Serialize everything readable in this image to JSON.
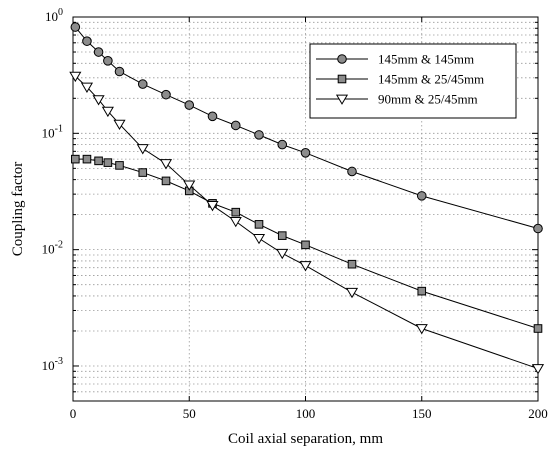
{
  "chart_data": {
    "type": "line",
    "xlabel": "Coil axial separation, mm",
    "ylabel": "Coupling factor",
    "xlim": [
      0,
      200
    ],
    "ylim": [
      0.0005,
      1
    ],
    "yscale": "log",
    "grid": true,
    "legend_position": "top-right",
    "x_ticks": [
      "0",
      "50",
      "100",
      "150",
      "200"
    ],
    "y_ticks": [
      {
        "base": "10",
        "exp": "0"
      },
      {
        "base": "10",
        "exp": "-1"
      },
      {
        "base": "10",
        "exp": "-2"
      },
      {
        "base": "10",
        "exp": "-3"
      }
    ],
    "series": [
      {
        "name": "145mm & 145mm",
        "marker": "circle",
        "color": "#8c8c8c",
        "x": [
          1,
          6,
          11,
          15,
          20,
          30,
          40,
          50,
          60,
          70,
          80,
          90,
          100,
          120,
          150,
          200
        ],
        "y": [
          0.82,
          0.62,
          0.5,
          0.42,
          0.34,
          0.265,
          0.215,
          0.175,
          0.14,
          0.117,
          0.097,
          0.08,
          0.068,
          0.047,
          0.029,
          0.0152
        ]
      },
      {
        "name": "145mm & 25/45mm",
        "marker": "square",
        "color": "#8c8c8c",
        "x": [
          1,
          6,
          11,
          15,
          20,
          30,
          40,
          50,
          60,
          70,
          80,
          90,
          100,
          120,
          150,
          200
        ],
        "y": [
          0.06,
          0.06,
          0.058,
          0.056,
          0.053,
          0.046,
          0.039,
          0.032,
          0.025,
          0.021,
          0.0165,
          0.0132,
          0.011,
          0.0075,
          0.0044,
          0.0021
        ]
      },
      {
        "name": "90mm & 25/45mm",
        "marker": "triangle-down",
        "color": "#ffffff",
        "x": [
          1,
          6,
          11,
          15,
          20,
          30,
          40,
          50,
          60,
          70,
          80,
          90,
          100,
          120,
          150,
          200
        ],
        "y": [
          0.31,
          0.25,
          0.195,
          0.155,
          0.12,
          0.074,
          0.055,
          0.036,
          0.024,
          0.0175,
          0.0125,
          0.0093,
          0.0073,
          0.0043,
          0.0021,
          0.00095
        ]
      }
    ]
  }
}
